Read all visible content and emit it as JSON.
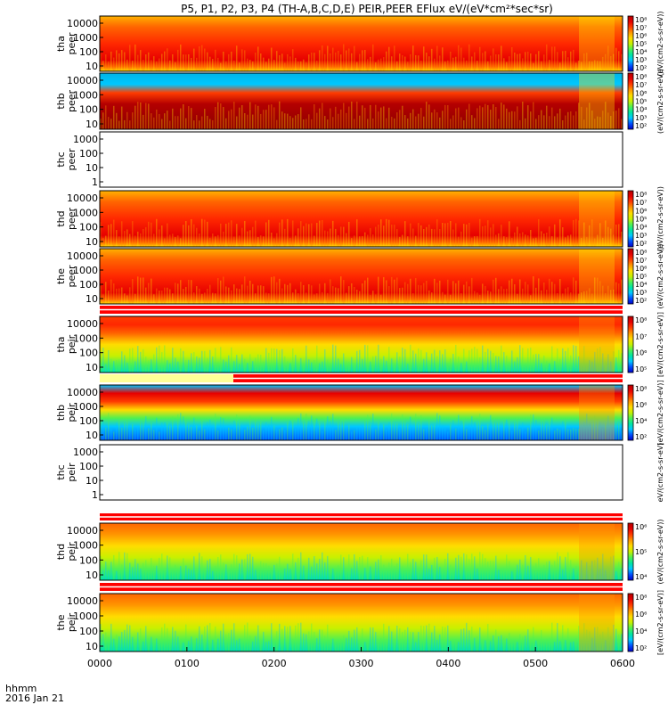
{
  "title": "P5, P1, P2, P3, P4 (TH-A,B,C,D,E) PEIR,PEER EFlux eV/(eV*cm²*sec*sr)",
  "chart_data": {
    "type": "heatmap",
    "date": "2016 Jan 21",
    "time_axis_label": "hhmm",
    "x_ticks": [
      "0000",
      "0100",
      "0200",
      "0300",
      "0400",
      "0500",
      "0600"
    ],
    "x_range": [
      "0000",
      "0600"
    ],
    "colormap": [
      "#0000c8",
      "#0050ff",
      "#00c8ff",
      "#00e6a0",
      "#50f050",
      "#c8f000",
      "#ffdc00",
      "#ff9600",
      "#ff3c00",
      "#e60000",
      "#b40000"
    ],
    "panels": [
      {
        "id": "tha-peer",
        "label1": "tha",
        "label2": "peer",
        "yticks": [
          "10",
          "100",
          "1000",
          "10000"
        ],
        "cbar_ticks": [
          "10²",
          "10³",
          "10⁴",
          "10⁵",
          "10⁶",
          "10⁷",
          "10⁸"
        ],
        "cbar_label": "(eV/(cm2-s-sr-eV))",
        "empty": false
      },
      {
        "id": "thb-peer",
        "label1": "thb",
        "label2": "peer",
        "yticks": [
          "10",
          "100",
          "1000",
          "10000"
        ],
        "cbar_ticks": [
          "10²",
          "10³",
          "10⁴",
          "10⁵",
          "10⁶",
          "10⁷",
          "10⁸"
        ],
        "cbar_label": "(eV/(cm2-s-sr-eV))",
        "empty": false
      },
      {
        "id": "thc-peer",
        "label1": "thc",
        "label2": "peer",
        "yticks": [
          "1",
          "10",
          "100",
          "1000"
        ],
        "cbar_ticks": [],
        "cbar_label": "",
        "empty": true
      },
      {
        "id": "thd-peer",
        "label1": "thd",
        "label2": "peer",
        "yticks": [
          "10",
          "100",
          "1000",
          "10000"
        ],
        "cbar_ticks": [
          "10²",
          "10³",
          "10⁴",
          "10⁵",
          "10⁶",
          "10⁷",
          "10⁸"
        ],
        "cbar_label": "(eV/(cm2-s-sr-eV))",
        "empty": false
      },
      {
        "id": "the-peer",
        "label1": "the",
        "label2": "peer",
        "yticks": [
          "10",
          "100",
          "1000",
          "10000"
        ],
        "cbar_ticks": [
          "10²",
          "10³",
          "10⁴",
          "10⁵",
          "10⁶",
          "10⁷",
          "10⁸"
        ],
        "cbar_label": "(eV/(cm2-s-sr-eV))",
        "empty": false
      },
      {
        "id": "tha-peir",
        "label1": "tha",
        "label2": "peir",
        "yticks": [
          "10",
          "100",
          "1000",
          "10000"
        ],
        "cbar_ticks": [
          "10⁵",
          "10⁶",
          "10⁷",
          "10⁸"
        ],
        "cbar_label": "[eV/(cm2-s-sr-eV)]",
        "empty": false
      },
      {
        "id": "thb-peir",
        "label1": "thb",
        "label2": "peir",
        "yticks": [
          "10",
          "100",
          "1000",
          "10000"
        ],
        "cbar_ticks": [
          "10²",
          "10⁴",
          "10⁶",
          "10⁸"
        ],
        "cbar_label": "[eV/(cm2-s-sr-eV)]",
        "empty": false
      },
      {
        "id": "thc-peir",
        "label1": "thc",
        "label2": "peir",
        "yticks": [
          "1",
          "10",
          "100",
          "1000"
        ],
        "cbar_ticks": [],
        "cbar_label": "eV/(cm2-s-sr-eV)",
        "empty": true
      },
      {
        "id": "thd-peir",
        "label1": "thd",
        "label2": "peir",
        "yticks": [
          "10",
          "100",
          "1000",
          "10000"
        ],
        "cbar_ticks": [
          "10⁴",
          "10⁵",
          "10⁶"
        ],
        "cbar_label": "(eV/(cm2-s-sr-eV))",
        "empty": false
      },
      {
        "id": "the-peir",
        "label1": "the",
        "label2": "peir",
        "yticks": [
          "10",
          "100",
          "1000",
          "10000"
        ],
        "cbar_ticks": [
          "10²",
          "10⁴",
          "10⁶",
          "10⁸"
        ],
        "cbar_label": "[eV/(cm2-s-sr-eV)]",
        "empty": false
      }
    ]
  }
}
